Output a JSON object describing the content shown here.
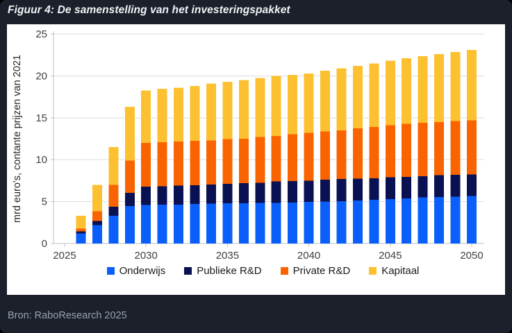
{
  "figure": {
    "title": "Figuur 4: De samenstelling van het investeringspakket",
    "source": "Bron: RaboResearch 2025"
  },
  "colors": {
    "background": "#1B202B",
    "panel": "#FFFFFF",
    "grid": "#DCDCDC",
    "axis": "#BFBFBF",
    "tick_text": "#404040",
    "axis_title_text": "#262626",
    "legend_text": "#1A1A1A",
    "title_text": "#F2F3F5",
    "source_text": "#9AA2B1"
  },
  "chart_data": {
    "type": "bar",
    "stacked": true,
    "title": "Figuur 4: De samenstelling van het investeringspakket",
    "xlabel": "",
    "ylabel": "mrd euro's, contante prijzen van 2021",
    "ylim": [
      0,
      25
    ],
    "yticks": [
      0,
      5,
      10,
      15,
      20,
      25
    ],
    "xticks": [
      2025,
      2030,
      2035,
      2040,
      2045,
      2050
    ],
    "xlim": [
      2025,
      2050
    ],
    "grid": "horizontal",
    "legend_position": "bottom",
    "categories": [
      2026,
      2027,
      2028,
      2029,
      2030,
      2031,
      2032,
      2033,
      2034,
      2035,
      2036,
      2037,
      2038,
      2039,
      2040,
      2041,
      2042,
      2043,
      2044,
      2045,
      2046,
      2047,
      2048,
      2049,
      2050
    ],
    "series": [
      {
        "name": "Onderwijs",
        "color": "#0A5FFA",
        "values": [
          1.2,
          2.2,
          3.3,
          4.45,
          4.6,
          4.65,
          4.65,
          4.7,
          4.75,
          4.8,
          4.8,
          4.85,
          4.85,
          4.9,
          4.95,
          5.0,
          5.05,
          5.15,
          5.2,
          5.3,
          5.4,
          5.5,
          5.55,
          5.6,
          5.65
        ]
      },
      {
        "name": "Publieke R&D",
        "color": "#0A1152",
        "values": [
          0.25,
          0.5,
          1.1,
          1.6,
          2.2,
          2.2,
          2.25,
          2.25,
          2.3,
          2.3,
          2.4,
          2.4,
          2.55,
          2.55,
          2.55,
          2.6,
          2.65,
          2.6,
          2.6,
          2.6,
          2.55,
          2.55,
          2.6,
          2.6,
          2.6
        ]
      },
      {
        "name": "Private R&D",
        "color": "#FA6400",
        "values": [
          0.35,
          1.15,
          2.6,
          3.85,
          5.2,
          5.25,
          5.25,
          5.3,
          5.25,
          5.35,
          5.3,
          5.45,
          5.45,
          5.6,
          5.7,
          5.75,
          5.8,
          6.0,
          6.1,
          6.2,
          6.35,
          6.35,
          6.35,
          6.4,
          6.45
        ]
      },
      {
        "name": "Kapitaal",
        "color": "#FCC030",
        "values": [
          1.5,
          3.15,
          4.5,
          6.4,
          6.25,
          6.35,
          6.45,
          6.55,
          6.8,
          6.85,
          7.0,
          7.05,
          7.15,
          7.05,
          7.1,
          7.25,
          7.4,
          7.45,
          7.6,
          7.7,
          7.8,
          7.95,
          8.1,
          8.25,
          8.4
        ]
      }
    ]
  }
}
